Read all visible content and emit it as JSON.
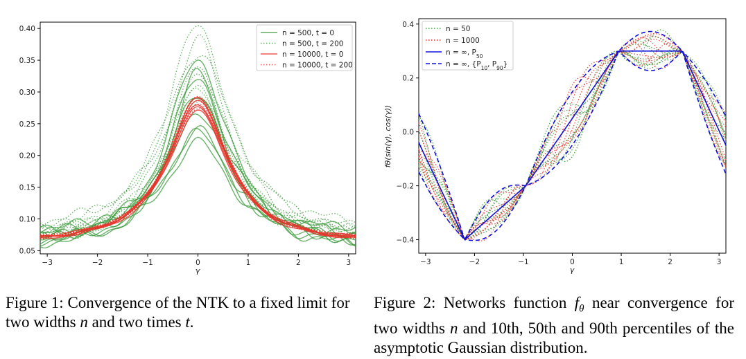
{
  "chart_data": [
    {
      "type": "line",
      "xlabel": "γ",
      "ylabel": "",
      "xlim": [
        -3.14,
        3.14
      ],
      "ylim": [
        0.045,
        0.41
      ],
      "xticks": [
        "−3",
        "−2",
        "−1",
        "0",
        "1",
        "2",
        "3"
      ],
      "xtick_values": [
        -3,
        -2,
        -1,
        0,
        1,
        2,
        3
      ],
      "yticks": [
        "0.05",
        "0.10",
        "0.15",
        "0.20",
        "0.25",
        "0.30",
        "0.35",
        "0.40"
      ],
      "ytick_values": [
        0.05,
        0.1,
        0.15,
        0.2,
        0.25,
        0.3,
        0.35,
        0.4
      ],
      "legend_position": "top-right",
      "series": [
        {
          "name": "n = 500, t = 0",
          "color": "#3a9a3a",
          "style": "solid",
          "peaks": [
            0.35,
            0.33,
            0.32,
            0.3,
            0.29,
            0.27,
            0.24,
            0.235,
            0.22
          ],
          "tails": [
            0.057,
            0.06,
            0.062,
            0.065,
            0.07,
            0.075,
            0.055,
            0.08,
            0.06
          ]
        },
        {
          "name": "n = 500, t = 200",
          "color": "#3a9a3a",
          "style": "dotted",
          "peaks": [
            0.405,
            0.385,
            0.36,
            0.34,
            0.32,
            0.31,
            0.3,
            0.29
          ],
          "tails": [
            0.065,
            0.07,
            0.075,
            0.08,
            0.085,
            0.06,
            0.07,
            0.078
          ]
        },
        {
          "name": "n = 10000, t = 0",
          "color": "#e8322a",
          "style": "solid",
          "peaks": [
            0.29,
            0.285,
            0.28,
            0.275,
            0.27
          ],
          "tails": [
            0.062,
            0.064,
            0.066,
            0.065,
            0.063
          ]
        },
        {
          "name": "n = 10000, t = 200",
          "color": "#e8322a",
          "style": "dotted",
          "peaks": [
            0.295,
            0.29,
            0.285,
            0.28,
            0.275
          ],
          "tails": [
            0.063,
            0.065,
            0.067,
            0.064,
            0.066
          ]
        }
      ]
    },
    {
      "type": "line",
      "xlabel": "γ",
      "ylabel": "fθ(sin(γ), cos(γ))",
      "xlim": [
        -3.14,
        3.14
      ],
      "ylim": [
        -0.45,
        0.42
      ],
      "xticks": [
        "−3",
        "−2",
        "−1",
        "0",
        "1",
        "2",
        "3"
      ],
      "xtick_values": [
        -3,
        -2,
        -1,
        0,
        1,
        2,
        3
      ],
      "yticks": [
        "−0.4",
        "−0.2",
        "0.0",
        "0.2",
        "0.4"
      ],
      "ytick_values": [
        -0.4,
        -0.2,
        0.0,
        0.2,
        0.4
      ],
      "legend_position": "top-left",
      "train_points": [
        [
          -2.2,
          -0.4
        ],
        [
          -0.95,
          -0.2
        ],
        [
          0.95,
          0.3
        ],
        [
          2.25,
          0.3
        ]
      ],
      "series": [
        {
          "name": "n = 50",
          "color": "#3a9a3a",
          "style": "dotted"
        },
        {
          "name": "n = 1000",
          "color": "#e8322a",
          "style": "dotted"
        },
        {
          "name": "n = ∞, P50",
          "color": "#1010dd",
          "style": "solid",
          "x": [
            -3.14,
            -2.2,
            -0.95,
            0.95,
            2.25,
            3.14
          ],
          "y": [
            -0.04,
            -0.4,
            -0.2,
            0.3,
            0.3,
            -0.05
          ]
        },
        {
          "name": "n = ∞, {P10, P90}",
          "color": "#1010dd",
          "style": "dashed"
        }
      ],
      "legend_labels": [
        {
          "prefix": "n = 50"
        },
        {
          "prefix": "n = 1000"
        },
        {
          "prefix": "n = ∞, P",
          "sub": "50"
        },
        {
          "prefix": "n = ∞, {P",
          "sub": "10",
          "mid": ", P",
          "sub2": "90",
          "suffix": "}"
        }
      ]
    }
  ],
  "captions": {
    "fig1": {
      "label": "Figure 1:",
      "text_a": " Convergence of the NTK to a fixed limit for two widths ",
      "n": "n",
      "text_b": " and two times ",
      "t": "t",
      "text_c": "."
    },
    "fig2": {
      "label": "Figure 2:",
      "text_a": " Networks function ",
      "f": "f",
      "theta": "θ",
      "text_b": " near convergence for two widths ",
      "n": "n",
      "text_c": " and 10th, 50th and 90th percentiles of the asymptotic Gaussian distribution."
    }
  }
}
